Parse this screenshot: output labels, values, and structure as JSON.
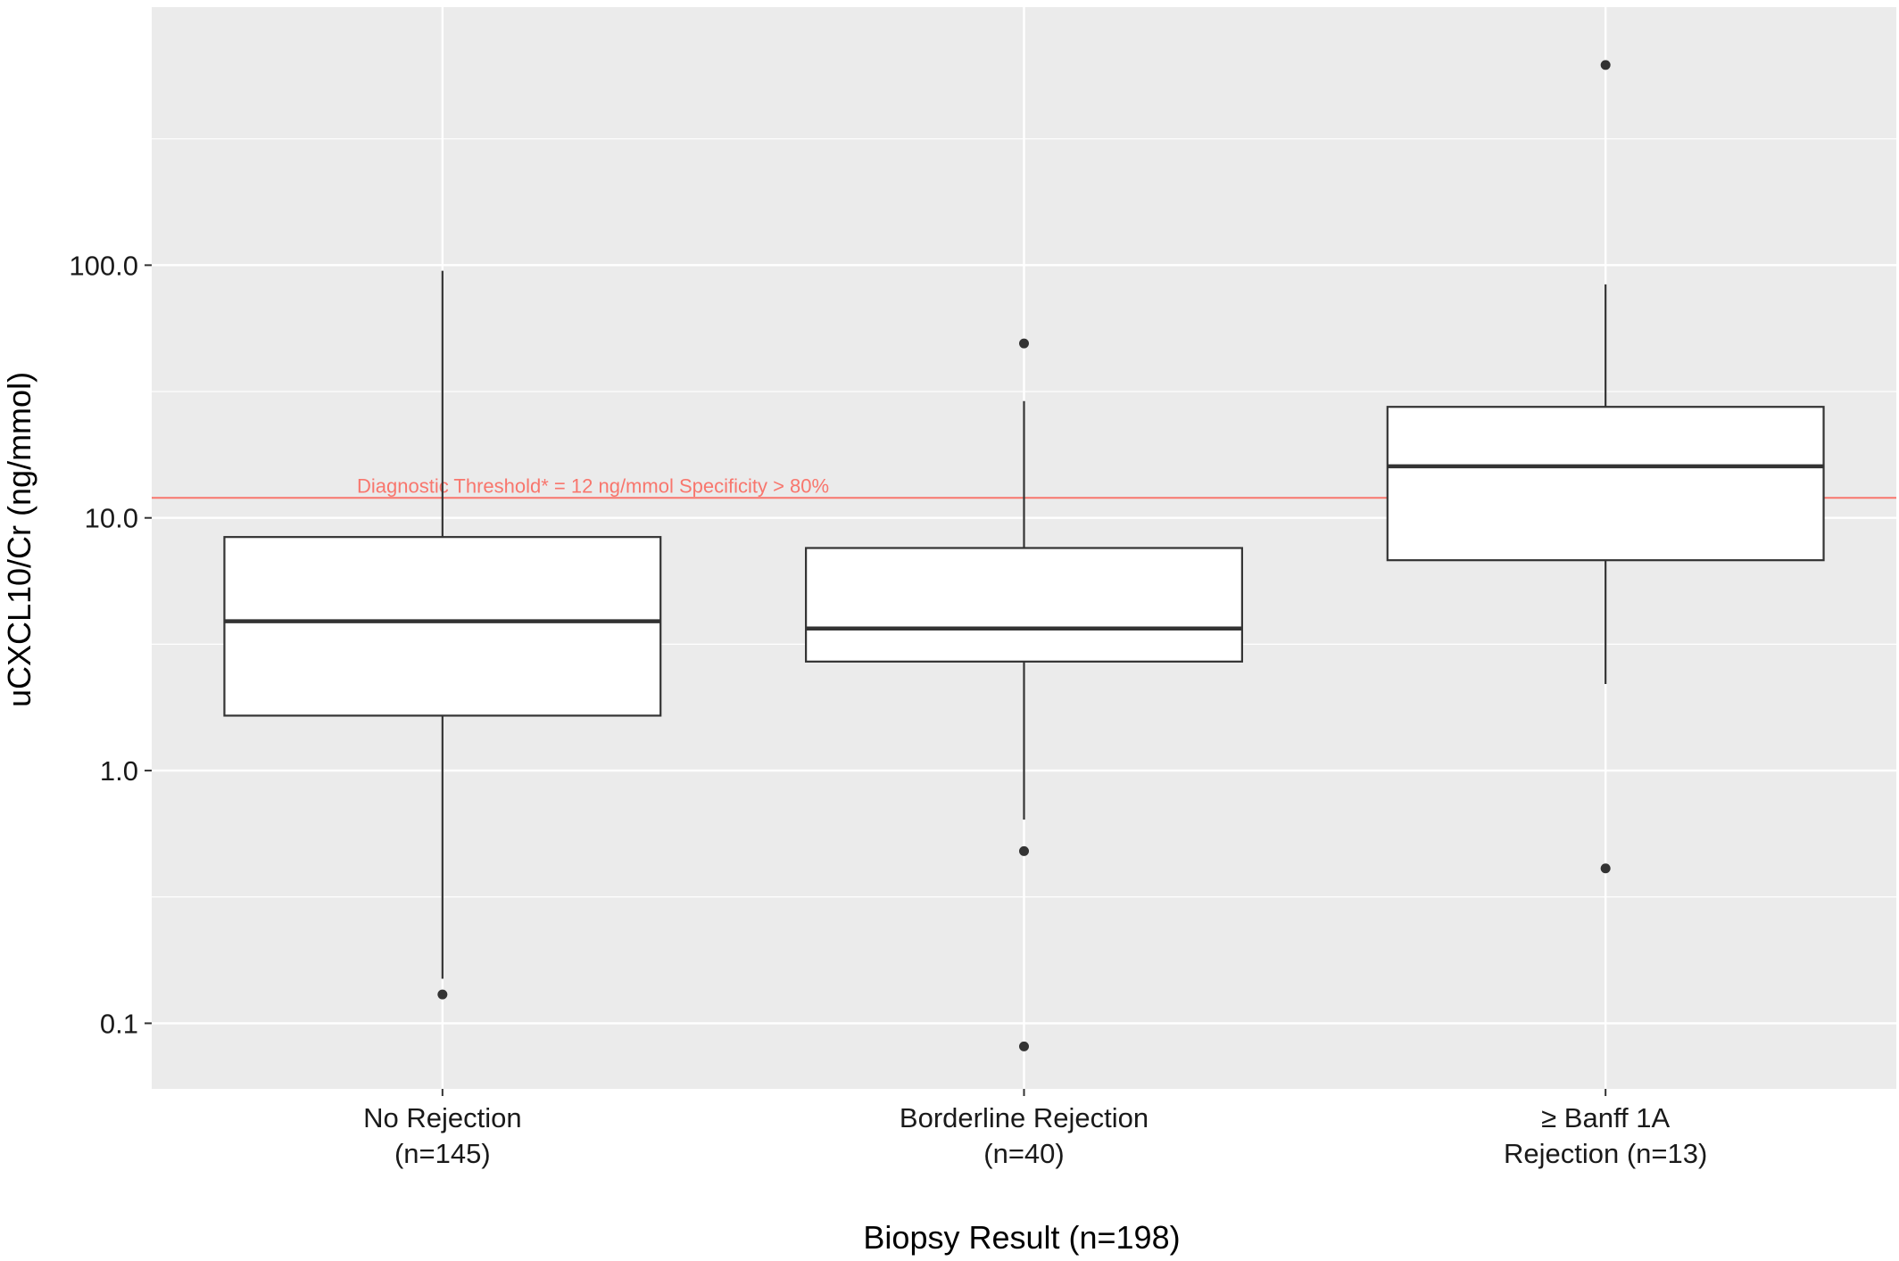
{
  "chart_data": {
    "type": "boxplot",
    "xlabel": "Biopsy Result (n=198)",
    "ylabel": "uCXCL10/Cr (ng/mmol)",
    "y_scale": "log10",
    "ylim": [
      0.055,
      1050
    ],
    "y_ticks": [
      {
        "value": 0.1,
        "label": "0.1"
      },
      {
        "value": 1,
        "label": "1.0"
      },
      {
        "value": 10,
        "label": "10.0"
      },
      {
        "value": 100,
        "label": "100.0"
      }
    ],
    "grid": true,
    "categories": [
      {
        "label_lines": [
          "No Rejection",
          "(n=145)"
        ],
        "q1": 1.65,
        "median": 3.9,
        "q3": 8.4,
        "whisker_low": 0.15,
        "whisker_high": 95,
        "outliers": [
          0.13
        ]
      },
      {
        "label_lines": [
          "Borderline Rejection",
          "(n=40)"
        ],
        "q1": 2.7,
        "median": 3.65,
        "q3": 7.6,
        "whisker_low": 0.64,
        "whisker_high": 29,
        "outliers": [
          0.48,
          0.081,
          49
        ]
      },
      {
        "label_lines": [
          "≥ Banff 1A",
          "Rejection (n=13)"
        ],
        "q1": 6.8,
        "median": 16,
        "q3": 27.5,
        "whisker_low": 2.2,
        "whisker_high": 84,
        "outliers": [
          0.41,
          620
        ]
      }
    ],
    "threshold": {
      "value": 12,
      "label": "Diagnostic Threshold* = 12 ng/mmol Specificity > 80%",
      "color": "#f8766d"
    },
    "colors": {
      "panel": "#ebebeb",
      "grid_major": "#ffffff",
      "box_fill": "#ffffff",
      "box_stroke": "#333333",
      "point": "#333333"
    }
  }
}
